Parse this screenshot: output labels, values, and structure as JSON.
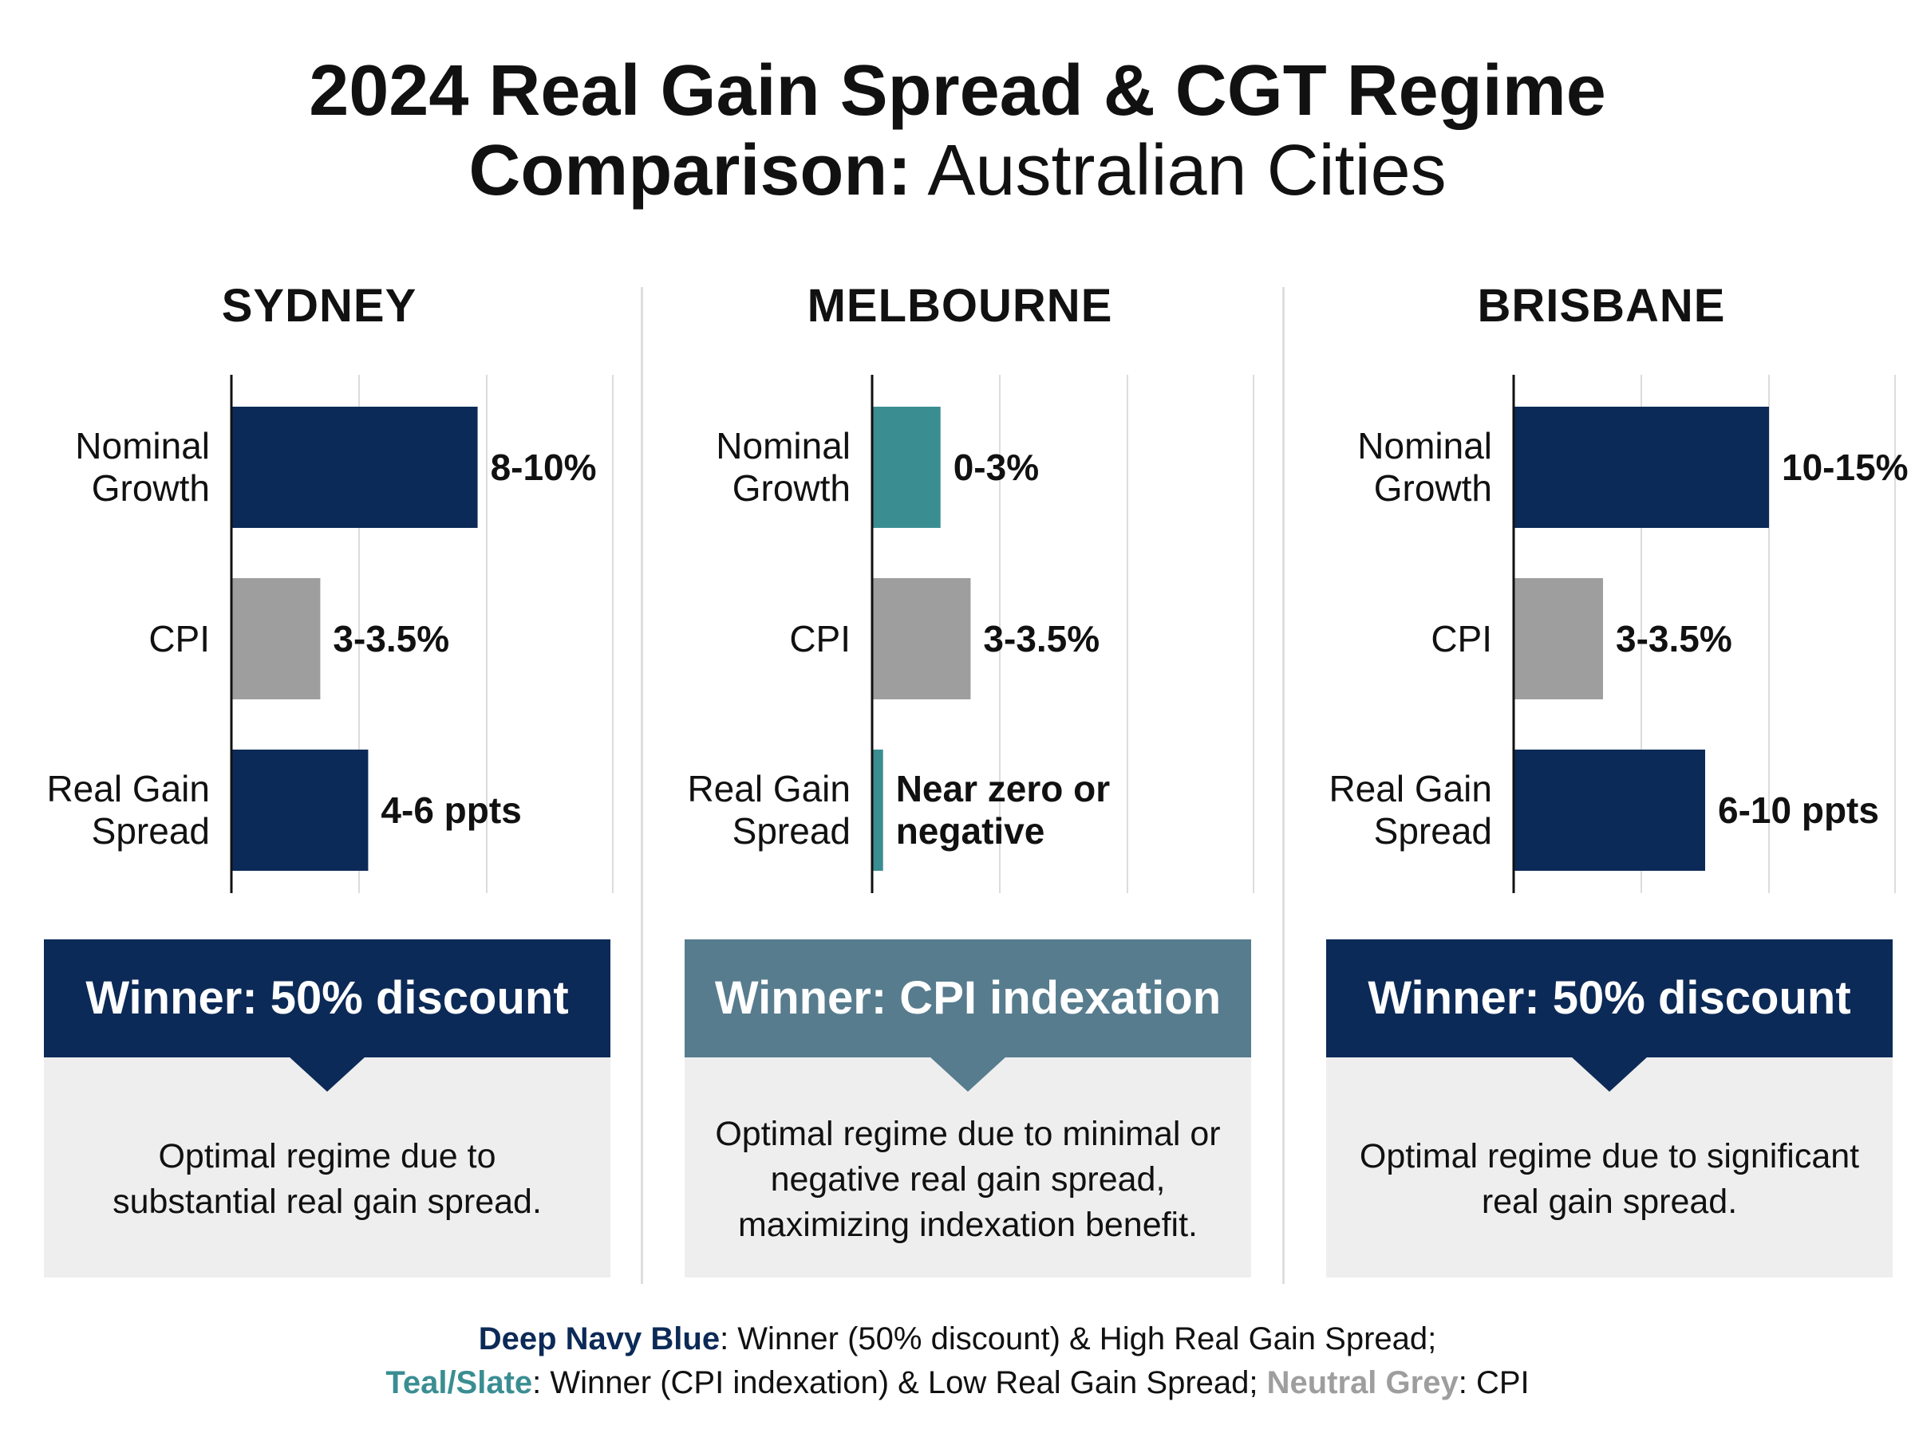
{
  "title": {
    "bold": "2024 Real Gain Spread & CGT Regime",
    "line2_bold": "Comparison:",
    "line2_light": " Australian Cities"
  },
  "colors": {
    "navy": "#0c2a57",
    "teal": "#3a8e92",
    "grey": "#9e9e9e",
    "slate": "#577c8e",
    "box": "#eeeeee"
  },
  "chart_data": [
    {
      "type": "bar",
      "orientation": "horizontal",
      "title": "SYDNEY",
      "categories": [
        "Nominal Growth",
        "CPI",
        "Real Gain Spread"
      ],
      "values": [
        9,
        3.25,
        5
      ],
      "value_labels": [
        "8-10%",
        "3-3.5%",
        "4-6 ppts"
      ],
      "bar_colors": [
        "navy",
        "grey",
        "navy"
      ],
      "xlim": [
        0,
        14
      ],
      "grid": true
    },
    {
      "type": "bar",
      "orientation": "horizontal",
      "title": "MELBOURNE",
      "categories": [
        "Nominal Growth",
        "CPI",
        "Real Gain Spread"
      ],
      "values": [
        2.5,
        3.6,
        0.4
      ],
      "value_labels": [
        "0-3%",
        "3-3.5%",
        "Near zero or negative"
      ],
      "bar_colors": [
        "teal",
        "grey",
        "teal"
      ],
      "xlim": [
        0,
        14
      ],
      "grid": true
    },
    {
      "type": "bar",
      "orientation": "horizontal",
      "title": "BRISBANE",
      "categories": [
        "Nominal Growth",
        "CPI",
        "Real Gain Spread"
      ],
      "values": [
        10,
        3.5,
        7.5
      ],
      "value_labels": [
        "10-15%",
        "3-3.5%",
        "6-10 ppts"
      ],
      "bar_colors": [
        "navy",
        "grey",
        "navy"
      ],
      "xlim": [
        0,
        15
      ],
      "grid": true
    }
  ],
  "panels": [
    {
      "city": "SYDNEY",
      "row_labels": [
        [
          "Nominal",
          "Growth"
        ],
        [
          "CPI"
        ],
        [
          "Real Gain",
          "Spread"
        ]
      ],
      "value_labels": [
        [
          "8-10%"
        ],
        [
          "3-3.5%"
        ],
        [
          "4-6 ppts"
        ]
      ],
      "winner": "Winner: 50% discount",
      "winner_color": "navy",
      "description": [
        "Optimal regime due to",
        "substantial real gain spread."
      ]
    },
    {
      "city": "MELBOURNE",
      "row_labels": [
        [
          "Nominal",
          "Growth"
        ],
        [
          "CPI"
        ],
        [
          "Real Gain",
          "Spread"
        ]
      ],
      "value_labels": [
        [
          "0-3%"
        ],
        [
          "3-3.5%"
        ],
        [
          "Near zero or",
          "negative"
        ]
      ],
      "winner": "Winner: CPI indexation",
      "winner_color": "slate",
      "description": [
        "Optimal regime due to minimal or",
        "negative real gain spread,",
        "maximizing indexation benefit."
      ]
    },
    {
      "city": "BRISBANE",
      "row_labels": [
        [
          "Nominal",
          "Growth"
        ],
        [
          "CPI"
        ],
        [
          "Real Gain",
          "Spread"
        ]
      ],
      "value_labels": [
        [
          "10-15%"
        ],
        [
          "3-3.5%"
        ],
        [
          "6-10 ppts"
        ]
      ],
      "winner": "Winner: 50% discount",
      "winner_color": "navy",
      "description": [
        "Optimal regime due to significant",
        "real gain spread."
      ]
    }
  ],
  "legend": {
    "line1_key": "Deep Navy Blue",
    "line1_text": ": Winner (50% discount) & High Real Gain Spread;",
    "line2_key": "Teal/Slate",
    "line2_text": ": Winner (CPI indexation) & Low Real Gain Spread; ",
    "line2_key2": "Neutral Grey",
    "line2_text2": ": CPI"
  }
}
